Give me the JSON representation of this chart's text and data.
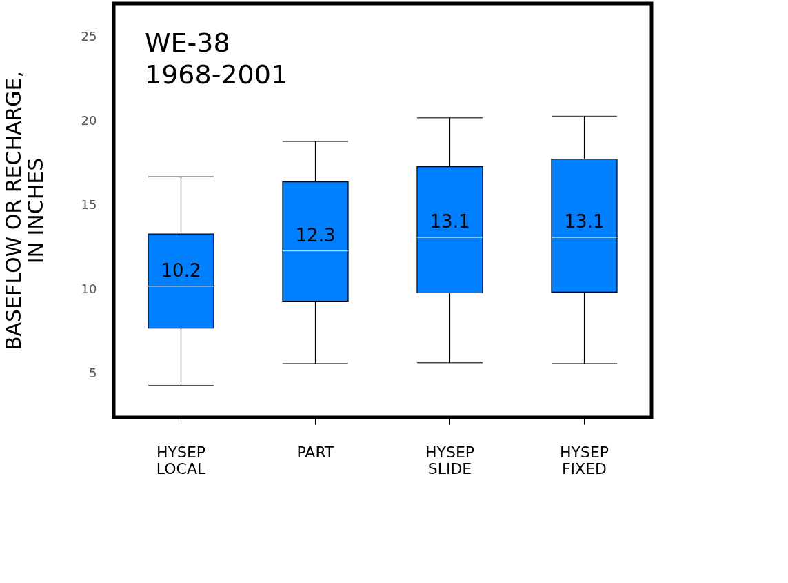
{
  "chart_data": {
    "type": "box",
    "title": "WE-38\n1968-2001",
    "ylabel": "BASEFLOW OR RECHARGE,\nIN INCHES",
    "categories": [
      "HYSEP\nLOCAL",
      "PART",
      "HYSEP\nSLIDE",
      "HYSEP\nFIXED"
    ],
    "boxes": [
      {
        "low": 4.3,
        "q1": 7.7,
        "median": 10.2,
        "q3": 13.3,
        "high": 16.7
      },
      {
        "low": 5.6,
        "q1": 9.3,
        "median": 12.3,
        "q3": 16.4,
        "high": 18.8
      },
      {
        "low": 5.65,
        "q1": 9.8,
        "median": 13.1,
        "q3": 17.3,
        "high": 20.2
      },
      {
        "low": 5.6,
        "q1": 9.85,
        "median": 13.1,
        "q3": 17.75,
        "high": 20.3
      }
    ],
    "color": "#0080ff",
    "ylim": [
      2.4,
      27
    ],
    "yticks": [
      5,
      10,
      15,
      20,
      25
    ],
    "grid": false,
    "annotations": [
      {
        "text": "10.2",
        "x": "HYSEP\nLOCAL",
        "y": 10.2
      },
      {
        "text": "12.3",
        "x": "PART",
        "y": 12.3
      },
      {
        "text": "13.1",
        "x": "HYSEP\nSLIDE",
        "y": 13.1
      },
      {
        "text": "13.1",
        "x": "HYSEP\nFIXED",
        "y": 13.1
      }
    ]
  }
}
